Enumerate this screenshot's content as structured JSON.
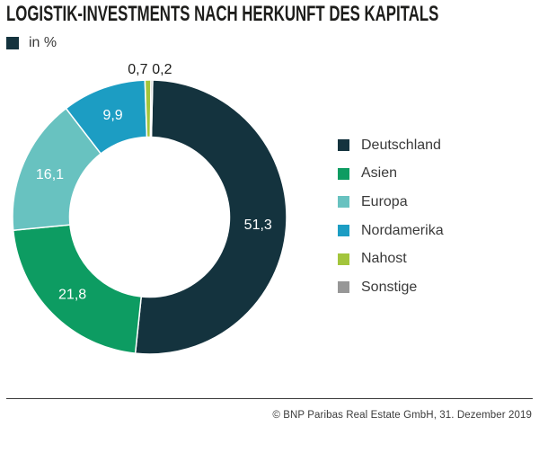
{
  "header": {
    "unit_legend": {
      "label": "in %",
      "swatch_color": "#14333E"
    }
  },
  "chart_data": {
    "type": "donut",
    "title": "LOGISTIK-INVESTMENTS NACH HERKUNFT DES KAPITALS",
    "unit": "in %",
    "start_angle_deg": 1.3,
    "legend_position": "right",
    "inside_label_color": "#FFFFFF",
    "outside_label_color": "#1D1D1B",
    "slices": [
      {
        "label": "Deutschland",
        "value": 51.3,
        "display": "51,3",
        "color": "#14333E"
      },
      {
        "label": "Asien",
        "value": 21.8,
        "display": "21,8",
        "color": "#0D9C62"
      },
      {
        "label": "Europa",
        "value": 16.1,
        "display": "16,1",
        "color": "#68C2C0"
      },
      {
        "label": "Nordamerika",
        "value": 9.9,
        "display": "9,9",
        "color": "#1C9DC3"
      },
      {
        "label": "Nahost",
        "value": 0.7,
        "display": "0,7",
        "color": "#A3C53C"
      },
      {
        "label": "Sonstige",
        "value": 0.2,
        "display": "0,2",
        "color": "#979797"
      }
    ]
  },
  "footer": {
    "copyright": "© BNP Paribas Real Estate GmbH, 31. Dezember 2019"
  }
}
